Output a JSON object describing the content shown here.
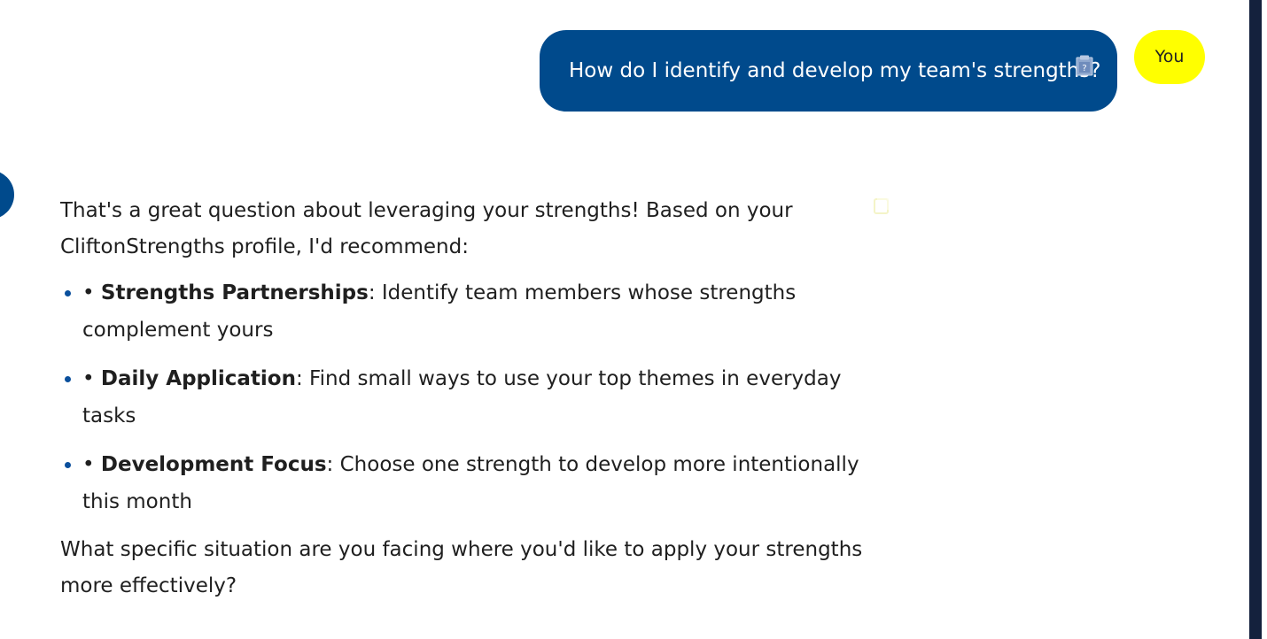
{
  "conversation": {
    "user_message": "How do I identify and develop my team's strengths?",
    "user_avatar_label": "You",
    "assistant_intro": "That's a great question about leveraging your strengths! Based on your CliftonStrengths profile, I'd recommend:",
    "recommendations": [
      {
        "prefix": "• ",
        "title": "Strengths Partnerships",
        "text": ": Identify team members whose strengths complement yours"
      },
      {
        "prefix": "• ",
        "title": "Daily Application",
        "text": ": Find small ways to use your top themes in everyday tasks"
      },
      {
        "prefix": "• ",
        "title": "Development Focus",
        "text": ": Choose one strength to develop more intentionally this month"
      }
    ],
    "assistant_outro": "What specific situation are you facing where you'd like to apply your strengths more effectively?"
  },
  "icons": {
    "user_copy_icon": "clipboard-icon",
    "assistant_copy_icon": "copy-icon"
  },
  "colors": {
    "user_bubble": "#004a8c",
    "user_avatar": "#ffff00",
    "assistant_avatar": "#004a8c",
    "scrollbar": "#14213d"
  }
}
